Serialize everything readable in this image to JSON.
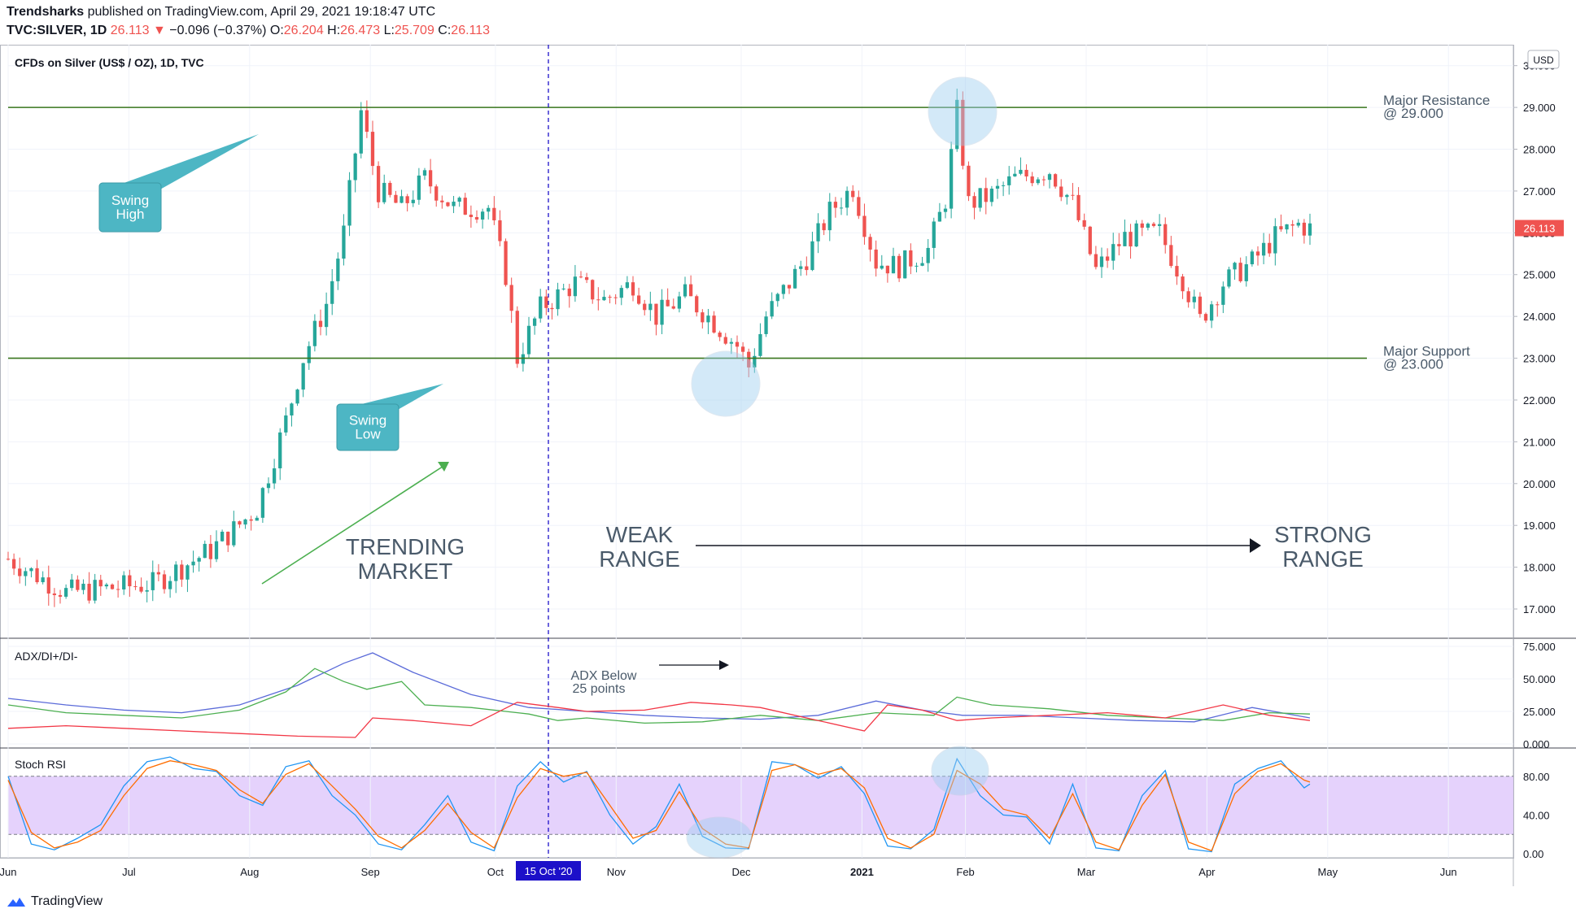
{
  "header": {
    "publisher": "Trendsharks",
    "published_text": " published on TradingView.com, April 29, 2021 19:18:47 UTC",
    "symbol": "TVC:SILVER, 1D",
    "last": "26.113",
    "change": "−0.096 (−0.37%)",
    "open_label": "O:",
    "open": "26.204",
    "high_label": "H:",
    "high": "26.473",
    "low_label": "L:",
    "low": "25.709",
    "close_label": "C:",
    "close": "26.113"
  },
  "footer": {
    "brand": "TradingView"
  },
  "colors": {
    "up": "#26a69a",
    "down": "#ef5350",
    "level": "#38761d",
    "adx": "#5b6bd9",
    "diplus": "#4caf50",
    "diminus": "#f23645",
    "stoch_k": "#2196f3",
    "stoch_d": "#ff6d00",
    "band": "#e1cafc",
    "annot": "#4db6c4",
    "text": "#4a5a6a",
    "cursor": "#1c10c9"
  },
  "chart_data": {
    "type": "candlestick",
    "title": "CFDs on Silver (US$ / OZ), 1D, TVC",
    "currency": "USD",
    "ylim": [
      16.3,
      30.5
    ],
    "y_ticks": [
      "30.000",
      "29.000",
      "28.000",
      "27.000",
      "26.000",
      "25.000",
      "24.000",
      "23.000",
      "22.000",
      "21.000",
      "20.000",
      "19.000",
      "18.000",
      "17.000"
    ],
    "x_ticks": [
      "Jun",
      "Jul",
      "Aug",
      "Sep",
      "Oct",
      "Nov",
      "Dec",
      "2021",
      "Feb",
      "Mar",
      "Apr",
      "May",
      "Jun"
    ],
    "cursor_label": "15 Oct '20",
    "last_price_label": "26.113",
    "price_keypoints": [
      [
        0,
        18.2
      ],
      [
        10,
        17.4
      ],
      [
        25,
        17.6
      ],
      [
        35,
        18.4
      ],
      [
        43,
        19.4
      ],
      [
        48,
        21.5
      ],
      [
        51,
        23.0
      ],
      [
        55,
        24.3
      ],
      [
        58,
        26.0
      ],
      [
        61,
        28.9
      ],
      [
        64,
        27.0
      ],
      [
        68,
        26.6
      ],
      [
        72,
        27.3
      ],
      [
        77,
        26.6
      ],
      [
        83,
        26.6
      ],
      [
        86,
        25.0
      ],
      [
        88,
        23.0
      ],
      [
        92,
        24.2
      ],
      [
        98,
        24.8
      ],
      [
        103,
        24.4
      ],
      [
        108,
        24.8
      ],
      [
        112,
        24.0
      ],
      [
        117,
        24.5
      ],
      [
        121,
        24.0
      ],
      [
        126,
        23.3
      ],
      [
        128,
        22.8
      ],
      [
        131,
        24.0
      ],
      [
        138,
        25.4
      ],
      [
        142,
        26.5
      ],
      [
        146,
        27.1
      ],
      [
        150,
        25.3
      ],
      [
        154,
        25.2
      ],
      [
        159,
        25.6
      ],
      [
        162,
        26.8
      ],
      [
        164,
        28.9
      ],
      [
        166,
        26.7
      ],
      [
        170,
        26.9
      ],
      [
        174,
        27.3
      ],
      [
        180,
        27.5
      ],
      [
        184,
        26.7
      ],
      [
        188,
        25.1
      ],
      [
        193,
        25.9
      ],
      [
        199,
        26.0
      ],
      [
        203,
        24.9
      ],
      [
        206,
        23.9
      ],
      [
        210,
        24.8
      ],
      [
        215,
        25.3
      ],
      [
        219,
        25.9
      ],
      [
        223,
        26.2
      ],
      [
        225,
        26.1
      ]
    ],
    "levels": [
      {
        "name": "Major Resistance",
        "value": 29.0,
        "label_line1": "Major Resistance",
        "label_line2": "@ 29.000"
      },
      {
        "name": "Major Support",
        "value": 23.0,
        "label_line1": "Major Support",
        "label_line2": "@ 23.000"
      }
    ],
    "annotations": {
      "swing_high": [
        "Swing",
        "High"
      ],
      "swing_low": [
        "Swing",
        "Low"
      ],
      "trending": [
        "TRENDING",
        "MARKET"
      ],
      "weak": [
        "WEAK",
        "RANGE"
      ],
      "strong": [
        "STRONG",
        "RANGE"
      ],
      "adx_note": [
        "ADX Below",
        "25 points"
      ]
    },
    "adx_panel": {
      "title": "ADX/DI+/DI-",
      "y_ticks": [
        "75.000",
        "50.000",
        "25.000",
        "0.000"
      ],
      "ylim": [
        0,
        75
      ],
      "adx": [
        [
          0,
          35
        ],
        [
          10,
          30
        ],
        [
          20,
          26
        ],
        [
          30,
          24
        ],
        [
          40,
          30
        ],
        [
          50,
          45
        ],
        [
          58,
          62
        ],
        [
          63,
          70
        ],
        [
          70,
          55
        ],
        [
          80,
          38
        ],
        [
          90,
          28
        ],
        [
          100,
          25
        ],
        [
          110,
          22
        ],
        [
          120,
          20
        ],
        [
          130,
          19
        ],
        [
          140,
          22
        ],
        [
          150,
          33
        ],
        [
          158,
          26
        ],
        [
          165,
          22
        ],
        [
          175,
          22
        ],
        [
          185,
          20
        ],
        [
          195,
          18
        ],
        [
          205,
          17
        ],
        [
          215,
          28
        ],
        [
          225,
          20
        ]
      ],
      "di_plus": [
        [
          0,
          30
        ],
        [
          10,
          24
        ],
        [
          20,
          22
        ],
        [
          30,
          20
        ],
        [
          40,
          26
        ],
        [
          48,
          40
        ],
        [
          53,
          58
        ],
        [
          58,
          48
        ],
        [
          62,
          42
        ],
        [
          68,
          48
        ],
        [
          72,
          30
        ],
        [
          80,
          28
        ],
        [
          90,
          23
        ],
        [
          95,
          18
        ],
        [
          100,
          20
        ],
        [
          110,
          16
        ],
        [
          120,
          17
        ],
        [
          130,
          22
        ],
        [
          140,
          18
        ],
        [
          150,
          24
        ],
        [
          160,
          22
        ],
        [
          164,
          36
        ],
        [
          170,
          30
        ],
        [
          180,
          27
        ],
        [
          190,
          22
        ],
        [
          200,
          20
        ],
        [
          210,
          18
        ],
        [
          218,
          24
        ],
        [
          225,
          23
        ]
      ],
      "di_minus": [
        [
          0,
          12
        ],
        [
          10,
          14
        ],
        [
          20,
          12
        ],
        [
          30,
          10
        ],
        [
          40,
          8
        ],
        [
          50,
          6
        ],
        [
          60,
          5
        ],
        [
          63,
          20
        ],
        [
          70,
          18
        ],
        [
          80,
          14
        ],
        [
          88,
          32
        ],
        [
          95,
          28
        ],
        [
          100,
          25
        ],
        [
          110,
          26
        ],
        [
          118,
          32
        ],
        [
          125,
          30
        ],
        [
          130,
          28
        ],
        [
          140,
          18
        ],
        [
          148,
          10
        ],
        [
          152,
          30
        ],
        [
          158,
          26
        ],
        [
          164,
          18
        ],
        [
          170,
          20
        ],
        [
          180,
          22
        ],
        [
          190,
          24
        ],
        [
          200,
          20
        ],
        [
          210,
          30
        ],
        [
          218,
          22
        ],
        [
          225,
          18
        ]
      ]
    },
    "stoch_panel": {
      "title": "Stoch RSI",
      "y_ticks": [
        "80.00",
        "40.00",
        "0.00"
      ],
      "ylim": [
        0,
        105
      ],
      "band": [
        20,
        80
      ],
      "k": [
        [
          0,
          80
        ],
        [
          4,
          10
        ],
        [
          8,
          4
        ],
        [
          12,
          16
        ],
        [
          16,
          30
        ],
        [
          20,
          70
        ],
        [
          24,
          95
        ],
        [
          28,
          100
        ],
        [
          32,
          88
        ],
        [
          36,
          85
        ],
        [
          40,
          60
        ],
        [
          44,
          50
        ],
        [
          48,
          90
        ],
        [
          52,
          96
        ],
        [
          56,
          60
        ],
        [
          60,
          40
        ],
        [
          64,
          10
        ],
        [
          68,
          4
        ],
        [
          72,
          30
        ],
        [
          76,
          60
        ],
        [
          80,
          12
        ],
        [
          84,
          3
        ],
        [
          88,
          70
        ],
        [
          92,
          95
        ],
        [
          96,
          74
        ],
        [
          100,
          85
        ],
        [
          104,
          40
        ],
        [
          108,
          10
        ],
        [
          112,
          28
        ],
        [
          116,
          72
        ],
        [
          120,
          18
        ],
        [
          124,
          6
        ],
        [
          128,
          5
        ],
        [
          132,
          95
        ],
        [
          136,
          92
        ],
        [
          140,
          78
        ],
        [
          144,
          90
        ],
        [
          148,
          62
        ],
        [
          152,
          8
        ],
        [
          156,
          5
        ],
        [
          160,
          25
        ],
        [
          164,
          98
        ],
        [
          168,
          60
        ],
        [
          172,
          40
        ],
        [
          176,
          38
        ],
        [
          180,
          10
        ],
        [
          184,
          72
        ],
        [
          188,
          6
        ],
        [
          192,
          3
        ],
        [
          196,
          60
        ],
        [
          200,
          86
        ],
        [
          204,
          5
        ],
        [
          208,
          2
        ],
        [
          212,
          72
        ],
        [
          216,
          88
        ],
        [
          220,
          96
        ],
        [
          224,
          68
        ],
        [
          225,
          72
        ]
      ],
      "d": [
        [
          0,
          76
        ],
        [
          4,
          22
        ],
        [
          8,
          6
        ],
        [
          12,
          12
        ],
        [
          16,
          24
        ],
        [
          20,
          60
        ],
        [
          24,
          88
        ],
        [
          28,
          96
        ],
        [
          32,
          92
        ],
        [
          36,
          86
        ],
        [
          40,
          66
        ],
        [
          44,
          52
        ],
        [
          48,
          82
        ],
        [
          52,
          93
        ],
        [
          56,
          70
        ],
        [
          60,
          46
        ],
        [
          64,
          18
        ],
        [
          68,
          6
        ],
        [
          72,
          24
        ],
        [
          76,
          52
        ],
        [
          80,
          22
        ],
        [
          84,
          6
        ],
        [
          88,
          58
        ],
        [
          92,
          88
        ],
        [
          96,
          80
        ],
        [
          100,
          84
        ],
        [
          104,
          50
        ],
        [
          108,
          16
        ],
        [
          112,
          24
        ],
        [
          116,
          64
        ],
        [
          120,
          26
        ],
        [
          124,
          10
        ],
        [
          128,
          6
        ],
        [
          132,
          86
        ],
        [
          136,
          92
        ],
        [
          140,
          82
        ],
        [
          144,
          88
        ],
        [
          148,
          68
        ],
        [
          152,
          16
        ],
        [
          156,
          6
        ],
        [
          160,
          20
        ],
        [
          164,
          86
        ],
        [
          168,
          72
        ],
        [
          172,
          46
        ],
        [
          176,
          40
        ],
        [
          180,
          16
        ],
        [
          184,
          62
        ],
        [
          188,
          12
        ],
        [
          192,
          4
        ],
        [
          196,
          50
        ],
        [
          200,
          82
        ],
        [
          204,
          12
        ],
        [
          208,
          3
        ],
        [
          212,
          62
        ],
        [
          216,
          85
        ],
        [
          220,
          93
        ],
        [
          224,
          76
        ],
        [
          225,
          74
        ]
      ]
    }
  }
}
